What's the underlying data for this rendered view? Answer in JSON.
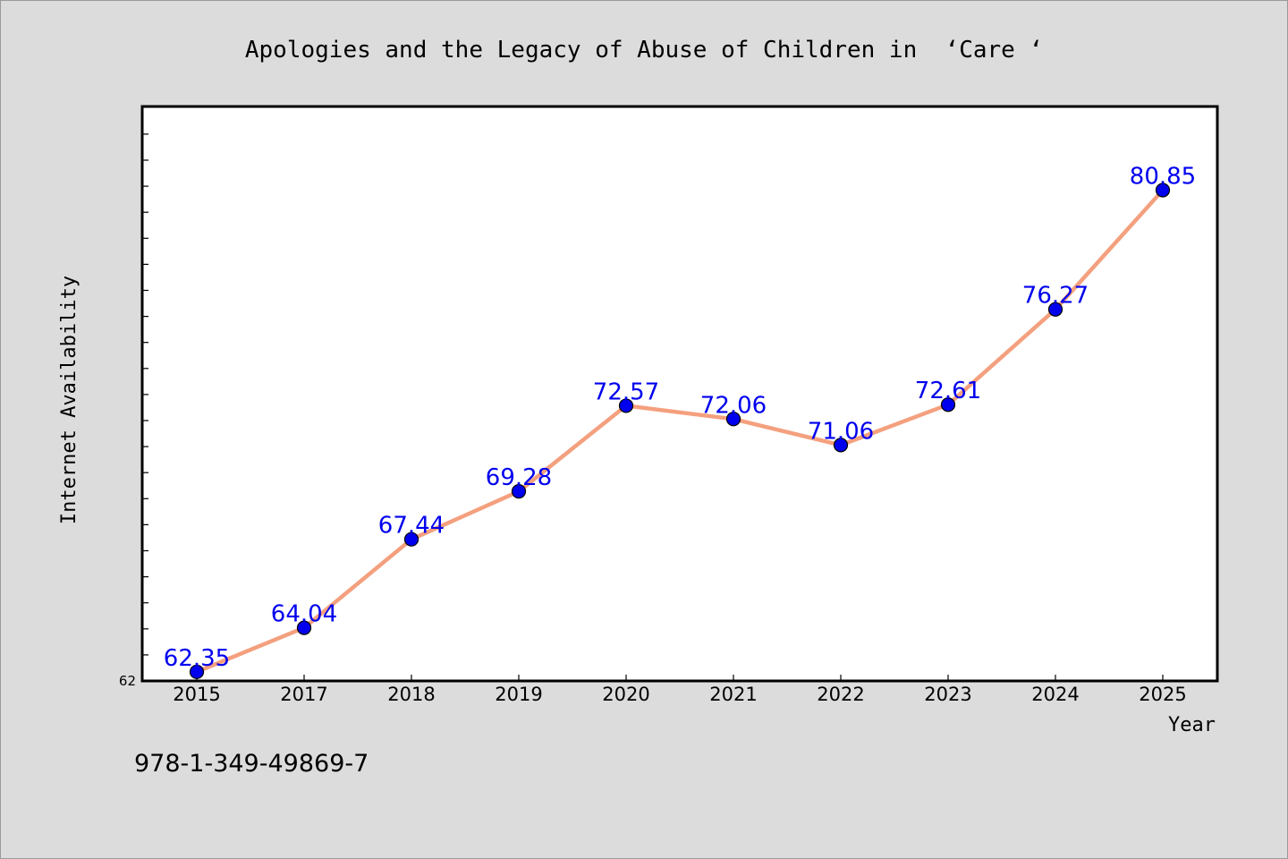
{
  "chart_data": {
    "type": "line",
    "title": "Apologies and the Legacy of Abuse of Children in  ‘Care ‘",
    "xlabel": "Year",
    "ylabel": "Internet Availability",
    "categories": [
      "2015",
      "2017",
      "2018",
      "2019",
      "2020",
      "2021",
      "2022",
      "2023",
      "2024",
      "2025"
    ],
    "series": [
      {
        "values": [
          62.35,
          64.04,
          67.44,
          69.28,
          72.57,
          72.06,
          71.06,
          72.61,
          76.27,
          80.85
        ]
      }
    ],
    "data_labels": [
      "62.35",
      "64.04",
      "67.44",
      "69.28",
      "72.57",
      "72.06",
      "71.06",
      "72.61",
      "76.27",
      "80.85"
    ],
    "y_tick_labels": [
      "62"
    ],
    "ylim": [
      62,
      84
    ],
    "grid": false,
    "colors": {
      "line": "#f4a07e",
      "marker": "#0000ee",
      "label": "#0000ee",
      "background": "#dcdcdc",
      "plot_background": "#ffffff"
    }
  },
  "footer": {
    "isbn": "978-1-349-49869-7"
  }
}
